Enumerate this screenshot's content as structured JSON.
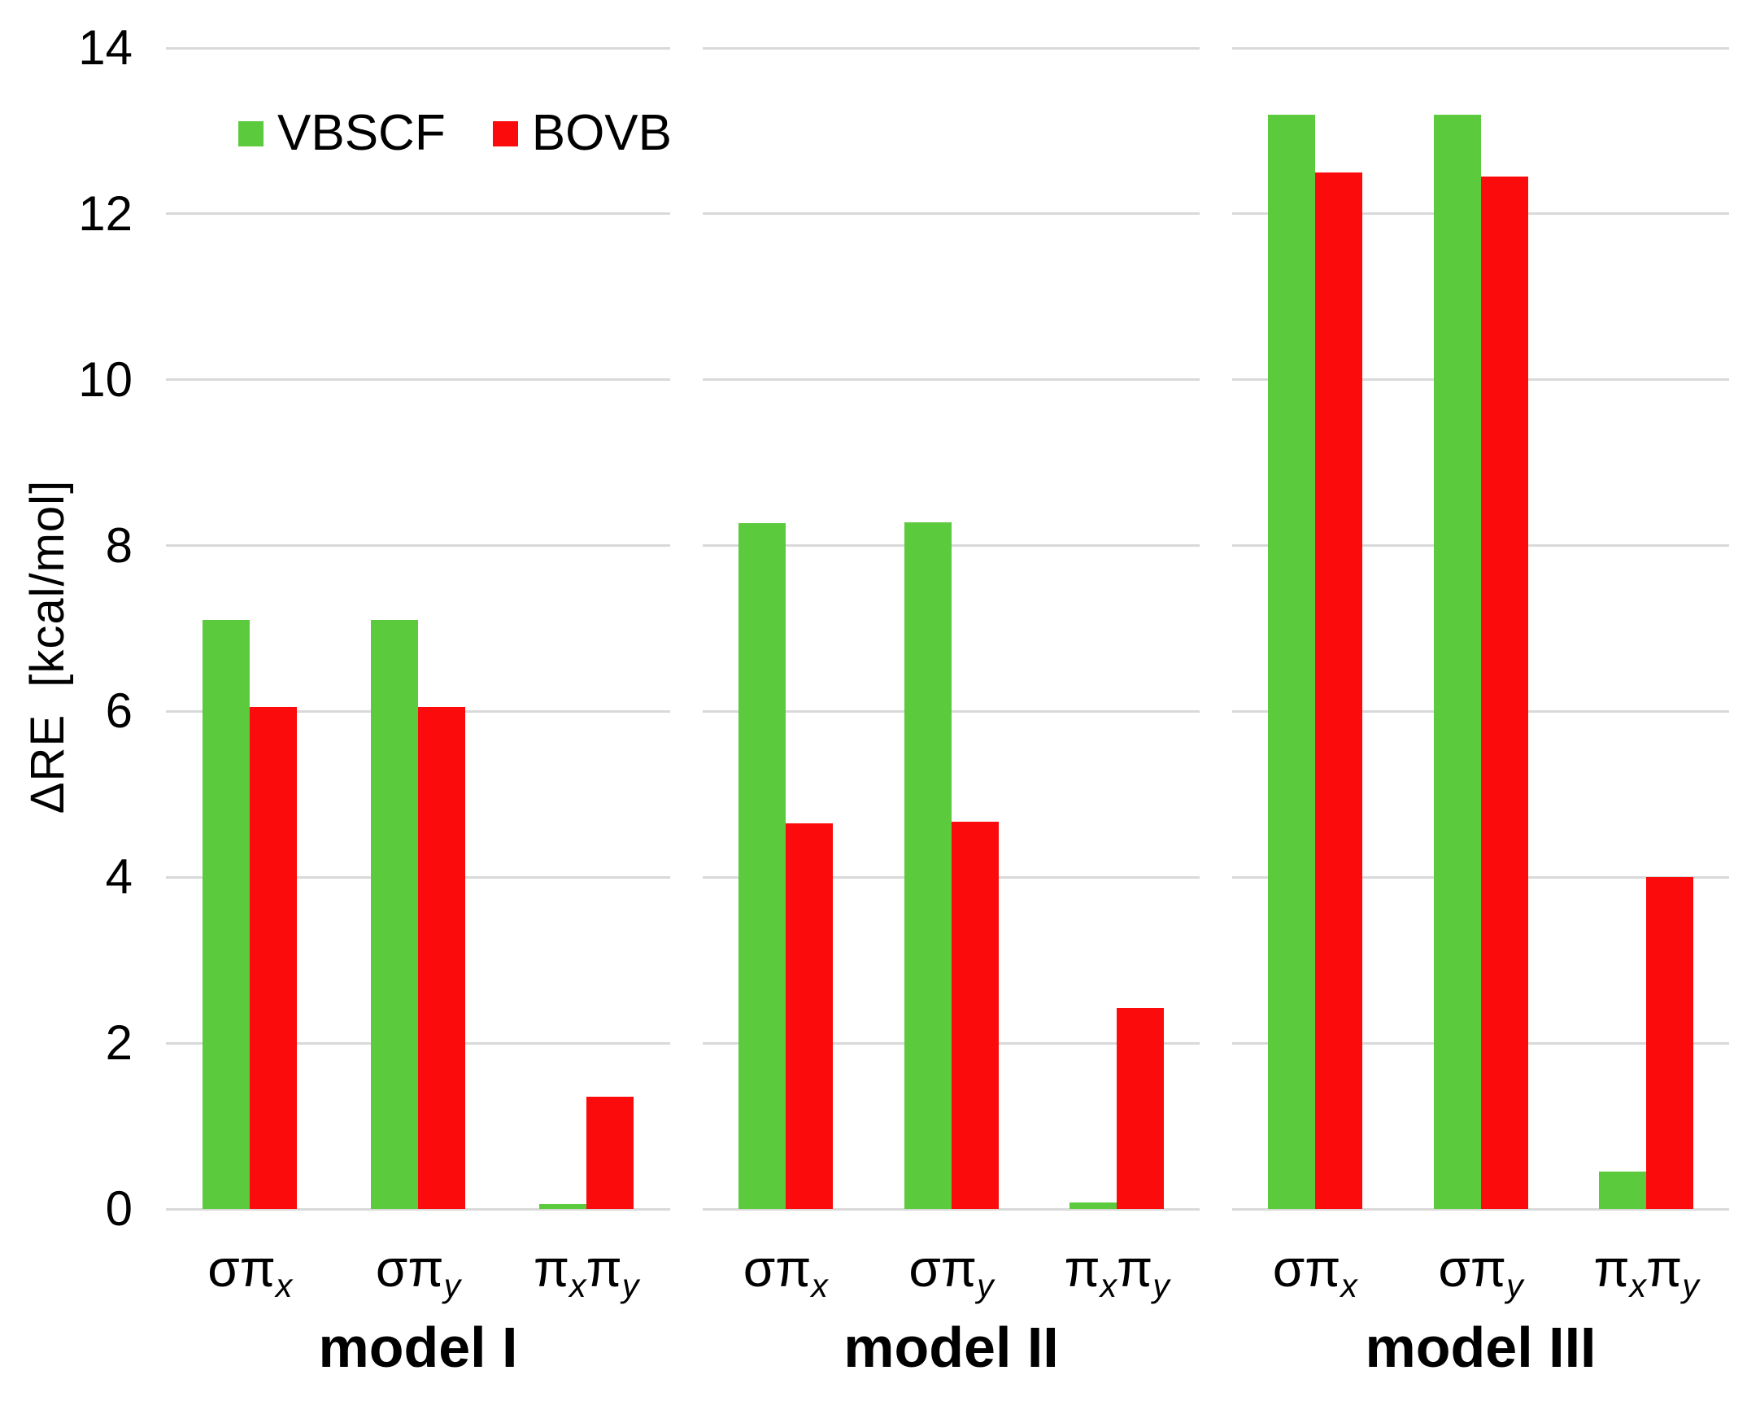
{
  "chart_data": {
    "type": "bar",
    "title": "",
    "ylabel": "ΔRE [kcal/mol]",
    "ylim": [
      0,
      14
    ],
    "yticks": [
      0,
      2,
      4,
      6,
      8,
      10,
      12,
      14
    ],
    "grid": true,
    "legend": {
      "position": "top-left",
      "entries": [
        {
          "name": "VBSCF",
          "color": "#5cca3d"
        },
        {
          "name": "BOVB",
          "color": "#fb0b0b"
        }
      ]
    },
    "categories_plain": [
      "σπx",
      "σπy",
      "πxπy"
    ],
    "category_parts": [
      [
        {
          "t": "σπ"
        },
        {
          "s": "x"
        }
      ],
      [
        {
          "t": "σπ"
        },
        {
          "s": "y"
        }
      ],
      [
        {
          "t": "π"
        },
        {
          "s": "x"
        },
        {
          "t": "π"
        },
        {
          "s": "y"
        }
      ]
    ],
    "panels": [
      {
        "title": "model I",
        "series": [
          {
            "name": "VBSCF",
            "values": [
              7.1,
              7.1,
              0.06
            ]
          },
          {
            "name": "BOVB",
            "values": [
              6.05,
              6.05,
              1.35
            ]
          }
        ]
      },
      {
        "title": "model II",
        "series": [
          {
            "name": "VBSCF",
            "values": [
              8.27,
              8.28,
              0.08
            ]
          },
          {
            "name": "BOVB",
            "values": [
              4.65,
              4.67,
              2.42
            ]
          }
        ]
      },
      {
        "title": "model III",
        "series": [
          {
            "name": "VBSCF",
            "values": [
              13.2,
              13.2,
              0.45
            ]
          },
          {
            "name": "BOVB",
            "values": [
              12.5,
              12.45,
              4.0
            ]
          }
        ]
      }
    ]
  }
}
